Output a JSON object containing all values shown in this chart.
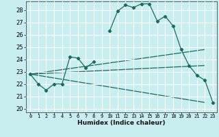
{
  "xlabel": "Humidex (Indice chaleur)",
  "bg_color": "#c8eef0",
  "grid_color": "#ffffff",
  "line_color": "#1a6b5a",
  "xlim": [
    -0.5,
    23.5
  ],
  "ylim": [
    19.7,
    28.7
  ],
  "yticks": [
    20,
    21,
    22,
    23,
    24,
    25,
    26,
    27,
    28
  ],
  "xticks": [
    0,
    1,
    2,
    3,
    4,
    5,
    6,
    7,
    8,
    9,
    10,
    11,
    12,
    13,
    14,
    15,
    16,
    17,
    18,
    19,
    20,
    21,
    22,
    23
  ],
  "series1_x": [
    0,
    1,
    2,
    3,
    4,
    5,
    6,
    7,
    8,
    9,
    10,
    11,
    12,
    13,
    14,
    15,
    16,
    17,
    18,
    19,
    20,
    21,
    22,
    23
  ],
  "series1_y": [
    22.8,
    22.0,
    21.5,
    22.0,
    22.0,
    24.2,
    24.1,
    23.3,
    23.8,
    null,
    26.3,
    27.9,
    28.4,
    28.2,
    28.5,
    28.5,
    27.1,
    27.5,
    26.7,
    24.8,
    23.5,
    22.7,
    22.3,
    20.5
  ],
  "series2_x": [
    0,
    22
  ],
  "series2_y": [
    22.8,
    24.8
  ],
  "series3_x": [
    0,
    22
  ],
  "series3_y": [
    22.8,
    23.5
  ],
  "series4_x": [
    0,
    22
  ],
  "series4_y": [
    22.8,
    20.5
  ]
}
